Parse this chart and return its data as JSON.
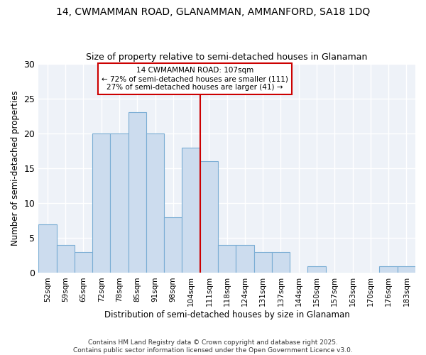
{
  "title1": "14, CWMAMMAN ROAD, GLANAMMAN, AMMANFORD, SA18 1DQ",
  "title2": "Size of property relative to semi-detached houses in Glanaman",
  "xlabel": "Distribution of semi-detached houses by size in Glanaman",
  "ylabel": "Number of semi-detached properties",
  "bar_labels": [
    "52sqm",
    "59sqm",
    "65sqm",
    "72sqm",
    "78sqm",
    "85sqm",
    "91sqm",
    "98sqm",
    "104sqm",
    "111sqm",
    "118sqm",
    "124sqm",
    "131sqm",
    "137sqm",
    "144sqm",
    "150sqm",
    "157sqm",
    "163sqm",
    "170sqm",
    "176sqm",
    "183sqm"
  ],
  "bar_values": [
    7,
    4,
    3,
    20,
    20,
    23,
    20,
    8,
    18,
    16,
    4,
    4,
    3,
    3,
    0,
    1,
    0,
    0,
    0,
    1,
    1
  ],
  "bar_color": "#ccdcee",
  "bar_edgecolor": "#7aadd4",
  "highlight_index": 8,
  "vline_x": 8.5,
  "annotation_text": "14 CWMAMMAN ROAD: 107sqm\n← 72% of semi-detached houses are smaller (111)\n27% of semi-detached houses are larger (41) →",
  "ylim": [
    0,
    30
  ],
  "yticks": [
    0,
    5,
    10,
    15,
    20,
    25,
    30
  ],
  "background_color": "#eef2f8",
  "footnote": "Contains HM Land Registry data © Crown copyright and database right 2025.\nContains public sector information licensed under the Open Government Licence v3.0."
}
